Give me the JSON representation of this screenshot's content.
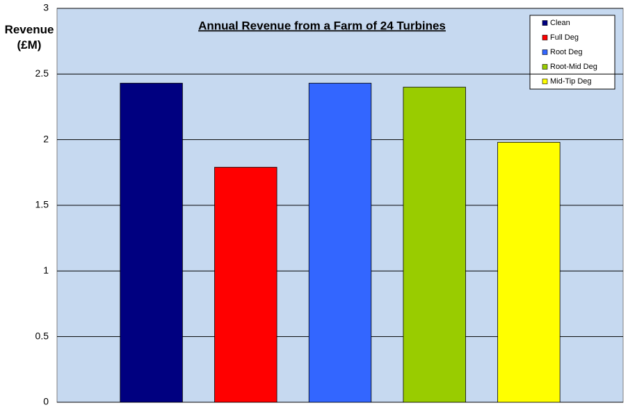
{
  "chart_data": {
    "type": "bar",
    "title": "Annual Revenue from a Farm of 24 Turbines",
    "y_label": "Revenue (£M)",
    "categories": [
      null
    ],
    "series": [
      {
        "name": "Clean",
        "color": "#000080",
        "values": [
          2.43
        ]
      },
      {
        "name": "Full Deg",
        "color": "#ff0000",
        "values": [
          1.79
        ]
      },
      {
        "name": "Root Deg",
        "color": "#3366ff",
        "values": [
          2.43
        ]
      },
      {
        "name": "Root-Mid Deg",
        "color": "#99cc00",
        "values": [
          2.4
        ]
      },
      {
        "name": "Mid-Tip Deg",
        "color": "#ffff00",
        "values": [
          1.98
        ]
      }
    ],
    "ylim": [
      0,
      3
    ],
    "yticks": [
      0,
      0.5,
      1,
      1.5,
      2,
      2.5,
      3
    ],
    "grid": true,
    "legend": "top-right"
  }
}
